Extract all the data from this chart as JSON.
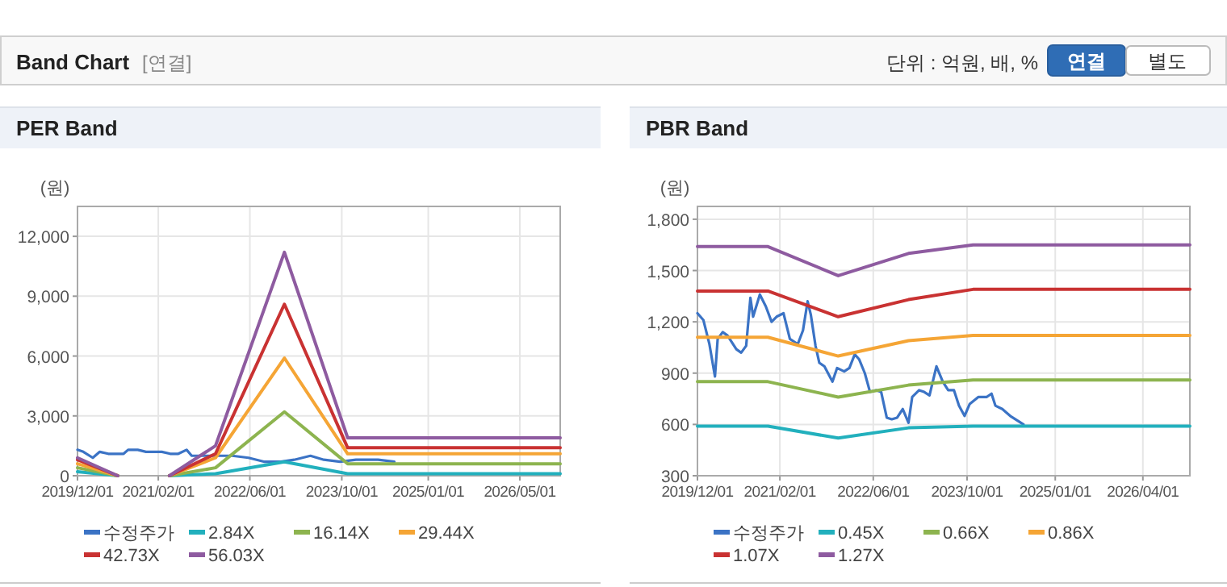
{
  "chart_data": [
    {
      "type": "other",
      "title": "Band Chart",
      "subtitle": "[연결]",
      "annotations": [
        "단위 : 억원, 배, %",
        "연결",
        "별도"
      ]
    },
    {
      "type": "line",
      "title": "PER Band",
      "ylabel": "(원)",
      "grid": true,
      "legend": "bottom",
      "xlim": [
        "2019-12-01",
        "2026-12-01"
      ],
      "xticks": [
        {
          "value": "2019-12-01",
          "label": "2019/12/01"
        },
        {
          "value": "2021-02-01",
          "label": "2021/02/01"
        },
        {
          "value": "2022-06-01",
          "label": "2022/06/01"
        },
        {
          "value": "2023-10-01",
          "label": "2023/10/01"
        },
        {
          "value": "2025-01-01",
          "label": "2025/01/01"
        },
        {
          "value": "2026-05-01",
          "label": "2026/05/01"
        }
      ],
      "ylim": [
        0,
        13500
      ],
      "yticks": [
        0,
        {
          "value": 3000,
          "label": "3,000"
        },
        {
          "value": 6000,
          "label": "6,000"
        },
        {
          "value": 9000,
          "label": "9,000"
        },
        {
          "value": 12000,
          "label": "12,000"
        }
      ],
      "x": [
        "2019-12-01",
        "2020-07-01",
        "2020-11-01",
        "2021-04-01",
        "2021-12-01",
        "2022-12-01",
        "2023-11-01",
        "2026-12-01"
      ],
      "series": [
        {
          "name": "수정주가",
          "color": "#3b73c5",
          "x": [
            "2019-12-01",
            "2020-01-01",
            "2020-02-20",
            "2020-03-28",
            "2020-05-12",
            "2020-08-01",
            "2020-08-25",
            "2020-10-15",
            "2020-11-28",
            "2021-02-20",
            "2021-04-05",
            "2021-05-18",
            "2021-07-01",
            "2021-07-28",
            "2021-10-08",
            "2021-12-18",
            "2022-02-28",
            "2022-05-25",
            "2022-08-18",
            "2022-11-12",
            "2023-01-22",
            "2023-04-18",
            "2023-06-28",
            "2023-09-22",
            "2023-12-15",
            "2024-04-10",
            "2024-07-05"
          ],
          "values": [
            1300,
            1200,
            900,
            1200,
            1100,
            1100,
            1300,
            1300,
            1200,
            1200,
            1100,
            1100,
            1300,
            1000,
            1000,
            1000,
            1000,
            900,
            700,
            700,
            800,
            1000,
            800,
            700,
            800,
            800,
            700
          ]
        },
        {
          "name": "2.84X",
          "color": "#22b0bd",
          "values": [
            200,
            0,
            null,
            0,
            100,
            700,
            100,
            100
          ]
        },
        {
          "name": "16.14X",
          "color": "#8db44f",
          "values": [
            400,
            0,
            null,
            0,
            400,
            3200,
            600,
            600
          ]
        },
        {
          "name": "29.44X",
          "color": "#f5a535",
          "values": [
            600,
            0,
            null,
            0,
            900,
            5900,
            1100,
            1100
          ]
        },
        {
          "name": "42.73X",
          "color": "#c93232",
          "values": [
            800,
            0,
            null,
            0,
            1100,
            8600,
            1400,
            1400
          ]
        },
        {
          "name": "56.03X",
          "color": "#8e5ba0",
          "values": [
            900,
            0,
            null,
            0,
            1500,
            11200,
            1900,
            1900
          ]
        }
      ]
    },
    {
      "type": "line",
      "title": "PBR Band",
      "ylabel": "(원)",
      "grid": true,
      "legend": "bottom",
      "xlim": [
        "2019-12-01",
        "2026-12-01"
      ],
      "xticks": [
        {
          "value": "2019-12-01",
          "label": "2019/12/01"
        },
        {
          "value": "2021-02-01",
          "label": "2021/02/01"
        },
        {
          "value": "2022-06-01",
          "label": "2022/06/01"
        },
        {
          "value": "2023-10-01",
          "label": "2023/10/01"
        },
        {
          "value": "2025-01-01",
          "label": "2025/01/01"
        },
        {
          "value": "2026-04-01",
          "label": "2026/04/01"
        }
      ],
      "ylim": [
        300,
        1875
      ],
      "yticks": [
        300,
        600,
        900,
        {
          "value": 1200,
          "label": "1,200"
        },
        {
          "value": 1500,
          "label": "1,500"
        },
        {
          "value": 1800,
          "label": "1,800"
        }
      ],
      "x": [
        "2019-12-01",
        "2020-12-01",
        "2021-12-01",
        "2022-12-01",
        "2023-11-01",
        "2026-12-01"
      ],
      "series": [
        {
          "name": "수정주가",
          "color": "#3b73c5",
          "x": [
            "2019-12-01",
            "2020-01-01",
            "2020-02-01",
            "2020-03-01",
            "2020-03-15",
            "2020-04-10",
            "2020-05-05",
            "2020-06-20",
            "2020-07-15",
            "2020-08-10",
            "2020-09-01",
            "2020-09-15",
            "2020-10-20",
            "2020-11-20",
            "2020-12-20",
            "2021-01-15",
            "2021-02-20",
            "2021-03-25",
            "2021-05-05",
            "2021-06-01",
            "2021-06-25",
            "2021-07-12",
            "2021-08-05",
            "2021-08-25",
            "2021-09-20",
            "2021-11-01",
            "2021-11-25",
            "2022-01-01",
            "2022-01-28",
            "2022-02-25",
            "2022-03-20",
            "2022-04-18",
            "2022-05-15",
            "2022-06-15",
            "2022-07-12",
            "2022-08-10",
            "2022-09-05",
            "2022-10-03",
            "2022-11-01",
            "2022-12-01",
            "2022-12-20",
            "2023-01-25",
            "2023-02-20",
            "2023-03-20",
            "2023-04-25",
            "2023-05-28",
            "2023-06-25",
            "2023-07-25",
            "2023-08-20",
            "2023-09-18",
            "2023-10-15",
            "2023-11-28",
            "2024-01-10",
            "2024-02-05",
            "2024-02-25",
            "2024-04-01",
            "2024-05-12",
            "2024-07-20"
          ],
          "values": [
            1250,
            1210,
            1070,
            880,
            1100,
            1140,
            1120,
            1040,
            1020,
            1060,
            1340,
            1230,
            1360,
            1290,
            1200,
            1230,
            1250,
            1100,
            1070,
            1150,
            1320,
            1240,
            1060,
            960,
            940,
            850,
            930,
            910,
            930,
            1010,
            980,
            900,
            790,
            800,
            790,
            640,
            630,
            640,
            690,
            610,
            760,
            800,
            790,
            770,
            940,
            850,
            800,
            800,
            710,
            650,
            720,
            760,
            760,
            780,
            710,
            690,
            650,
            600
          ]
        },
        {
          "name": "0.45X",
          "color": "#22b0bd",
          "values": [
            590,
            590,
            520,
            580,
            590,
            590
          ]
        },
        {
          "name": "0.66X",
          "color": "#8db44f",
          "values": [
            850,
            850,
            760,
            830,
            860,
            860
          ]
        },
        {
          "name": "0.86X",
          "color": "#f5a535",
          "values": [
            1110,
            1110,
            1000,
            1090,
            1120,
            1120
          ]
        },
        {
          "name": "1.07X",
          "color": "#c93232",
          "values": [
            1380,
            1380,
            1230,
            1330,
            1390,
            1390
          ]
        },
        {
          "name": "1.27X",
          "color": "#8e5ba0",
          "values": [
            1640,
            1640,
            1470,
            1600,
            1650,
            1650
          ]
        }
      ]
    }
  ]
}
